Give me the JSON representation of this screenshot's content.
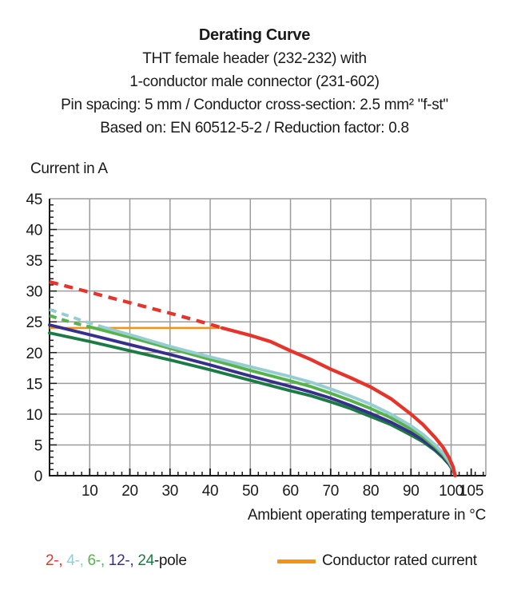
{
  "header": {
    "title": "Derating Curve",
    "lines": [
      "THT female header (232-232) with",
      "1-conductor male connector (231-602)",
      "Pin spacing: 5 mm / Conductor cross-section: 2.5 mm² \"f-st\"",
      "Based on: EN 60512-5-2 / Reduction factor: 0.8"
    ]
  },
  "legend": {
    "pole_parts": [
      {
        "text": "2-, ",
        "color": "#e5342b"
      },
      {
        "text": "4-, ",
        "color": "#95cdd2"
      },
      {
        "text": "6-, ",
        "color": "#56b24a"
      },
      {
        "text": "12-, ",
        "color": "#36308c"
      },
      {
        "text": "24",
        "color": "#1c7b45"
      },
      {
        "text": "-pole",
        "color": "#1a1a1a"
      }
    ],
    "rated": {
      "label": "Conductor rated current",
      "color": "#f39315"
    }
  },
  "chart_data": {
    "type": "line",
    "title": "Derating Curve",
    "xlabel": "Ambient operating temperature in °C",
    "ylabel": "Current in A",
    "xlim": [
      0,
      108.6
    ],
    "ylim": [
      0,
      45
    ],
    "x_major_ticks": [
      10,
      20,
      30,
      40,
      50,
      60,
      70,
      80,
      90,
      100,
      105
    ],
    "x_gridlines": [
      10,
      20,
      30,
      40,
      50,
      60,
      70,
      80,
      90,
      100
    ],
    "x_minor_step": 2,
    "y_major_ticks": [
      0,
      5,
      10,
      15,
      20,
      25,
      30,
      35,
      40,
      45
    ],
    "y_minor_step": 1,
    "grid_on": true,
    "grid_color": "#9c9c9c",
    "axis_color": "#1a1a1a",
    "legend_position": "bottom",
    "reference_line": {
      "label": "Conductor rated current",
      "color": "#f39315",
      "value": 24,
      "x_start": 0,
      "x_end": 43.5
    },
    "series": [
      {
        "name": "2-pole",
        "color": "#e5342b",
        "width": 4.3,
        "dash_until": 43,
        "dash_pattern": "11 8",
        "points": [
          [
            0,
            31.5
          ],
          [
            10,
            29.8
          ],
          [
            20,
            28.1
          ],
          [
            30,
            26.4
          ],
          [
            40,
            24.6
          ],
          [
            43,
            24
          ],
          [
            50,
            22.8
          ],
          [
            55,
            21.8
          ],
          [
            60,
            20.3
          ],
          [
            65,
            18.9
          ],
          [
            70,
            17.3
          ],
          [
            75,
            15.9
          ],
          [
            80,
            14.4
          ],
          [
            85,
            12.5
          ],
          [
            90,
            10
          ],
          [
            93,
            8.3
          ],
          [
            96,
            6.2
          ],
          [
            98,
            4.6
          ],
          [
            99.5,
            2.9
          ],
          [
            100.5,
            1.4
          ],
          [
            101,
            0
          ]
        ]
      },
      {
        "name": "4-pole",
        "color": "#95cdd2",
        "width": 3.9,
        "dash_until": 14,
        "dash_pattern": "9 7",
        "points": [
          [
            0,
            27
          ],
          [
            5,
            25.9
          ],
          [
            10,
            24.8
          ],
          [
            14,
            24
          ],
          [
            20,
            22.9
          ],
          [
            30,
            21
          ],
          [
            40,
            19.3
          ],
          [
            50,
            17.7
          ],
          [
            60,
            16.1
          ],
          [
            65,
            15.2
          ],
          [
            70,
            14.1
          ],
          [
            75,
            12.9
          ],
          [
            80,
            11.6
          ],
          [
            85,
            10
          ],
          [
            90,
            8.1
          ],
          [
            93,
            6.7
          ],
          [
            96,
            5
          ],
          [
            98,
            3.7
          ],
          [
            99.5,
            2.3
          ],
          [
            100.5,
            1.1
          ],
          [
            101,
            0
          ]
        ]
      },
      {
        "name": "6-pole",
        "color": "#56b24a",
        "width": 3.9,
        "dash_until": 11,
        "dash_pattern": "9 7",
        "points": [
          [
            0,
            26
          ],
          [
            5,
            25
          ],
          [
            11,
            24
          ],
          [
            20,
            22.5
          ],
          [
            30,
            20.7
          ],
          [
            40,
            18.9
          ],
          [
            50,
            17.1
          ],
          [
            60,
            15.4
          ],
          [
            65,
            14.5
          ],
          [
            70,
            13.4
          ],
          [
            75,
            12.2
          ],
          [
            80,
            10.9
          ],
          [
            85,
            9.4
          ],
          [
            90,
            7.6
          ],
          [
            93,
            6.3
          ],
          [
            96,
            4.7
          ],
          [
            98,
            3.4
          ],
          [
            99.5,
            2.1
          ],
          [
            100.5,
            1
          ],
          [
            101,
            0
          ]
        ]
      },
      {
        "name": "12-pole",
        "color": "#36308c",
        "width": 3.9,
        "dash_until": 0,
        "dash_pattern": "",
        "points": [
          [
            0,
            24.5
          ],
          [
            10,
            22.9
          ],
          [
            20,
            21.3
          ],
          [
            30,
            19.7
          ],
          [
            40,
            18
          ],
          [
            50,
            16.2
          ],
          [
            60,
            14.5
          ],
          [
            65,
            13.6
          ],
          [
            70,
            12.6
          ],
          [
            75,
            11.4
          ],
          [
            80,
            10.1
          ],
          [
            85,
            8.7
          ],
          [
            90,
            7
          ],
          [
            93,
            5.8
          ],
          [
            96,
            4.3
          ],
          [
            98,
            3.1
          ],
          [
            99.5,
            1.9
          ],
          [
            100.5,
            0.9
          ],
          [
            101,
            0
          ]
        ]
      },
      {
        "name": "24-pole",
        "color": "#1c7b45",
        "width": 3.9,
        "dash_until": 0,
        "dash_pattern": "",
        "points": [
          [
            0,
            23.2
          ],
          [
            10,
            21.8
          ],
          [
            20,
            20.3
          ],
          [
            30,
            18.8
          ],
          [
            40,
            17.2
          ],
          [
            50,
            15.5
          ],
          [
            60,
            13.8
          ],
          [
            65,
            13
          ],
          [
            70,
            12
          ],
          [
            75,
            10.9
          ],
          [
            80,
            9.6
          ],
          [
            85,
            8.3
          ],
          [
            90,
            6.6
          ],
          [
            93,
            5.5
          ],
          [
            96,
            4.1
          ],
          [
            98,
            2.9
          ],
          [
            99.5,
            1.8
          ],
          [
            100.5,
            0.8
          ],
          [
            101,
            0
          ]
        ]
      }
    ]
  }
}
